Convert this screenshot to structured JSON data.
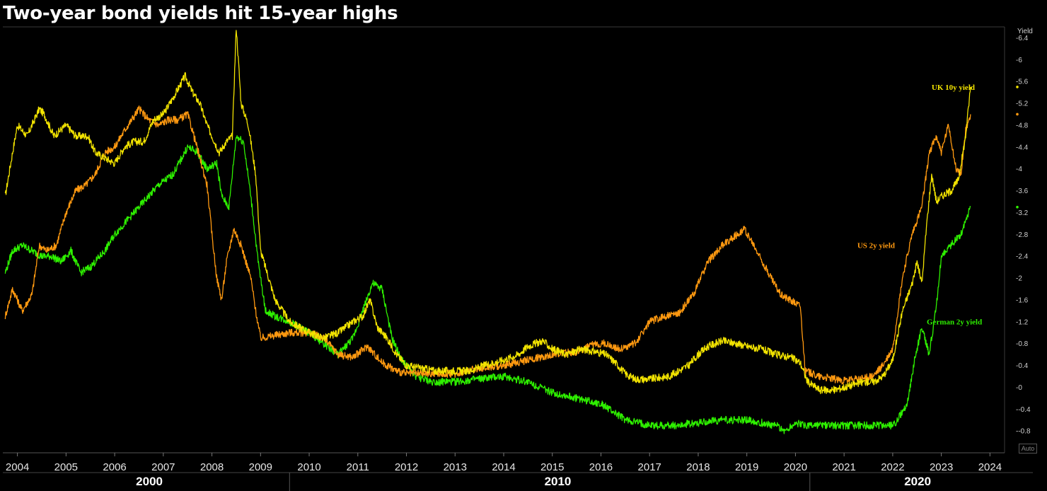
{
  "chart_data": {
    "type": "line",
    "title": "Two-year bond yields hit 15-year highs",
    "ylabel": "Yield",
    "ylim": [
      -1.2,
      6.6
    ],
    "xlim": [
      2003.7,
      2024.3
    ],
    "y_ticks": [
      6.4,
      6,
      5.6,
      5.2,
      4.8,
      4.4,
      4,
      3.6,
      3.2,
      2.8,
      2.4,
      2,
      1.6,
      1.2,
      0.8,
      0.4,
      0,
      -0.4,
      -0.8
    ],
    "x_ticks": [
      2004,
      2005,
      2006,
      2007,
      2008,
      2009,
      2010,
      2011,
      2012,
      2013,
      2014,
      2015,
      2016,
      2017,
      2018,
      2019,
      2020,
      2021,
      2022,
      2023,
      2024
    ],
    "decades": [
      "2000",
      "2010",
      "2020"
    ],
    "grid": false,
    "scale_button": "Auto",
    "series": [
      {
        "name": "UK 10y yield",
        "color": "#f2e300",
        "x": [
          2003.75,
          2003.9,
          2004.0,
          2004.2,
          2004.45,
          2004.55,
          2004.75,
          2005.0,
          2005.2,
          2005.45,
          2005.6,
          2005.8,
          2006.0,
          2006.2,
          2006.4,
          2006.6,
          2006.8,
          2007.0,
          2007.2,
          2007.45,
          2007.6,
          2007.75,
          2007.9,
          2008.0,
          2008.15,
          2008.3,
          2008.42,
          2008.5,
          2008.6,
          2008.75,
          2008.9,
          2009.0,
          2009.3,
          2009.6,
          2010.0,
          2010.3,
          2010.6,
          2010.9,
          2011.1,
          2011.25,
          2011.4,
          2011.6,
          2011.8,
          2012.0,
          2012.3,
          2012.6,
          2013.0,
          2013.3,
          2013.6,
          2014.0,
          2014.3,
          2014.5,
          2014.8,
          2015.0,
          2015.3,
          2015.6,
          2015.9,
          2016.1,
          2016.3,
          2016.5,
          2016.7,
          2017.0,
          2017.4,
          2017.8,
          2018.0,
          2018.2,
          2018.5,
          2018.8,
          2019.0,
          2019.3,
          2019.6,
          2019.9,
          2020.1,
          2020.25,
          2020.5,
          2020.8,
          2021.0,
          2021.2,
          2021.4,
          2021.6,
          2021.8,
          2022.0,
          2022.2,
          2022.4,
          2022.5,
          2022.6,
          2022.7,
          2022.8,
          2022.9,
          2023.0,
          2023.2,
          2023.35,
          2023.5,
          2023.6
        ],
        "y": [
          3.5,
          4.3,
          4.8,
          4.6,
          5.1,
          5.0,
          4.6,
          4.8,
          4.6,
          4.6,
          4.3,
          4.2,
          4.1,
          4.4,
          4.5,
          4.5,
          4.9,
          5.0,
          5.3,
          5.7,
          5.4,
          5.2,
          4.8,
          4.6,
          4.3,
          4.5,
          4.6,
          6.6,
          5.2,
          4.8,
          3.9,
          2.5,
          1.6,
          1.2,
          1.0,
          0.9,
          1.0,
          1.2,
          1.3,
          1.6,
          1.1,
          0.9,
          0.6,
          0.4,
          0.35,
          0.3,
          0.3,
          0.3,
          0.4,
          0.5,
          0.6,
          0.75,
          0.85,
          0.7,
          0.6,
          0.7,
          0.65,
          0.6,
          0.45,
          0.25,
          0.15,
          0.15,
          0.2,
          0.4,
          0.6,
          0.75,
          0.85,
          0.8,
          0.75,
          0.7,
          0.6,
          0.55,
          0.45,
          0.1,
          -0.05,
          -0.05,
          0.0,
          0.05,
          0.1,
          0.1,
          0.2,
          0.5,
          1.4,
          1.9,
          2.3,
          1.9,
          3.0,
          3.9,
          3.4,
          3.5,
          3.6,
          3.8,
          4.6,
          5.5
        ]
      },
      {
        "name": "US 2y yield",
        "color": "#ff9910",
        "x": [
          2003.75,
          2003.9,
          2004.1,
          2004.3,
          2004.45,
          2004.6,
          2004.8,
          2005.0,
          2005.2,
          2005.4,
          2005.6,
          2005.8,
          2006.0,
          2006.2,
          2006.5,
          2006.7,
          2006.9,
          2007.1,
          2007.3,
          2007.5,
          2007.6,
          2007.75,
          2007.9,
          2008.0,
          2008.1,
          2008.2,
          2008.3,
          2008.45,
          2008.6,
          2008.8,
          2008.9,
          2009.0,
          2009.3,
          2009.6,
          2010.0,
          2010.3,
          2010.6,
          2010.9,
          2011.2,
          2011.5,
          2011.8,
          2012.0,
          2012.5,
          2013.0,
          2013.5,
          2014.0,
          2014.5,
          2015.0,
          2015.5,
          2015.9,
          2016.1,
          2016.4,
          2016.7,
          2017.0,
          2017.3,
          2017.6,
          2017.9,
          2018.2,
          2018.5,
          2018.8,
          2018.95,
          2019.2,
          2019.5,
          2019.7,
          2019.9,
          2020.1,
          2020.2,
          2020.5,
          2020.8,
          2021.0,
          2021.3,
          2021.6,
          2021.8,
          2022.0,
          2022.2,
          2022.4,
          2022.6,
          2022.75,
          2022.9,
          2023.0,
          2023.15,
          2023.3,
          2023.4,
          2023.5,
          2023.6
        ],
        "y": [
          1.3,
          1.8,
          1.4,
          1.7,
          2.6,
          2.5,
          2.6,
          3.2,
          3.6,
          3.7,
          3.9,
          4.3,
          4.4,
          4.7,
          5.1,
          4.9,
          4.8,
          4.9,
          4.9,
          5.0,
          4.7,
          4.2,
          3.7,
          2.8,
          2.0,
          1.6,
          2.3,
          2.9,
          2.6,
          2.0,
          1.4,
          0.9,
          0.95,
          1.0,
          1.0,
          0.9,
          0.6,
          0.55,
          0.75,
          0.45,
          0.3,
          0.25,
          0.25,
          0.25,
          0.35,
          0.4,
          0.5,
          0.6,
          0.65,
          0.8,
          0.8,
          0.7,
          0.8,
          1.2,
          1.3,
          1.35,
          1.7,
          2.3,
          2.6,
          2.8,
          2.9,
          2.5,
          2.0,
          1.7,
          1.6,
          1.5,
          0.3,
          0.2,
          0.15,
          0.12,
          0.15,
          0.2,
          0.4,
          0.7,
          2.0,
          2.8,
          3.3,
          4.3,
          4.6,
          4.3,
          4.8,
          4.0,
          3.9,
          4.7,
          5.0
        ]
      },
      {
        "name": "German 2y yield",
        "color": "#2ef000",
        "x": [
          2003.75,
          2003.9,
          2004.1,
          2004.3,
          2004.5,
          2004.7,
          2004.9,
          2005.1,
          2005.3,
          2005.5,
          2005.8,
          2006.0,
          2006.3,
          2006.6,
          2006.9,
          2007.2,
          2007.5,
          2007.7,
          2007.9,
          2008.1,
          2008.2,
          2008.35,
          2008.5,
          2008.65,
          2008.8,
          2008.95,
          2009.1,
          2009.3,
          2009.6,
          2010.0,
          2010.3,
          2010.6,
          2010.9,
          2011.1,
          2011.3,
          2011.5,
          2011.7,
          2011.9,
          2012.2,
          2012.5,
          2013.0,
          2013.5,
          2014.0,
          2014.5,
          2015.0,
          2015.5,
          2016.0,
          2016.5,
          2017.0,
          2017.5,
          2018.0,
          2018.5,
          2019.0,
          2019.3,
          2019.6,
          2019.8,
          2020.0,
          2020.2,
          2020.5,
          2021.0,
          2021.5,
          2022.0,
          2022.1,
          2022.3,
          2022.45,
          2022.6,
          2022.75,
          2022.9,
          2023.0,
          2023.2,
          2023.4,
          2023.6
        ],
        "y": [
          2.1,
          2.5,
          2.6,
          2.5,
          2.4,
          2.4,
          2.3,
          2.5,
          2.1,
          2.2,
          2.5,
          2.8,
          3.1,
          3.4,
          3.7,
          3.9,
          4.4,
          4.3,
          4.0,
          4.1,
          3.5,
          3.3,
          4.6,
          4.5,
          3.5,
          2.3,
          1.4,
          1.3,
          1.2,
          1.0,
          0.8,
          0.6,
          0.9,
          1.4,
          1.9,
          1.8,
          0.9,
          0.5,
          0.2,
          0.1,
          0.1,
          0.15,
          0.2,
          0.1,
          -0.1,
          -0.2,
          -0.3,
          -0.6,
          -0.7,
          -0.7,
          -0.65,
          -0.6,
          -0.6,
          -0.65,
          -0.7,
          -0.8,
          -0.65,
          -0.7,
          -0.7,
          -0.7,
          -0.7,
          -0.7,
          -0.6,
          -0.3,
          0.5,
          1.1,
          0.6,
          1.5,
          2.4,
          2.6,
          2.8,
          3.3
        ]
      }
    ]
  }
}
